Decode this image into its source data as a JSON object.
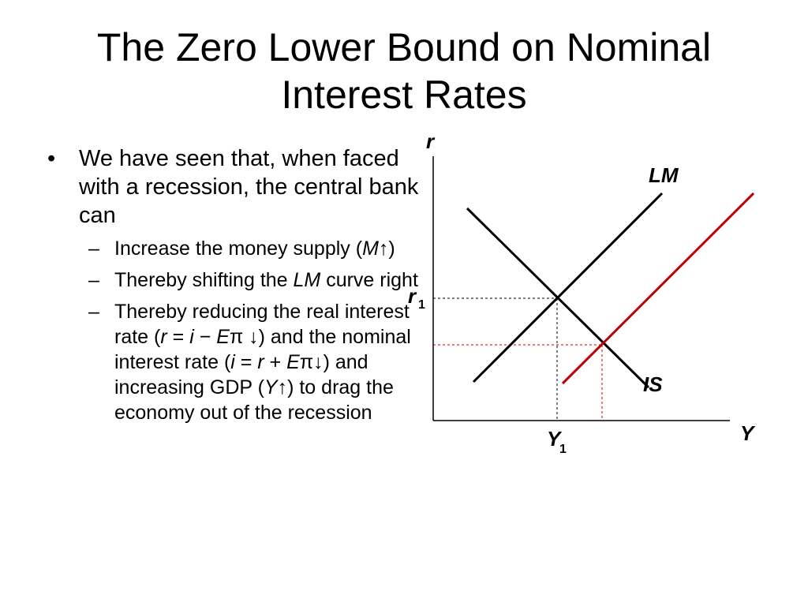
{
  "slide": {
    "title": "The Zero Lower Bound on Nominal Interest Rates",
    "bullets": [
      {
        "marker": "•",
        "text": "We have seen that, when faced with a recession, the central bank can",
        "sub_marker": "–",
        "sub_items": [
          [
            "Increase the money supply (",
            {
              "i": "M"
            },
            "↑)"
          ],
          [
            "Thereby shifting the ",
            {
              "i": "LM"
            },
            " curve right"
          ],
          [
            "Thereby reducing the real interest rate (",
            {
              "i": "r"
            },
            " = ",
            {
              "i": "i"
            },
            " − ",
            {
              "i": "E"
            },
            "π ↓) and the nominal interest rate (",
            {
              "i": "i"
            },
            " = ",
            {
              "i": "r"
            },
            " + ",
            {
              "i": "E"
            },
            "π↓) and increasing GDP (",
            {
              "i": "Y"
            },
            "↑) to drag the economy out of the recession"
          ]
        ]
      }
    ]
  },
  "diagram": {
    "y_axis_label": "r",
    "x_axis_label": "Y",
    "lm_label": "LM",
    "is_label": "IS",
    "r1_label": "r",
    "r1_subscript": "1",
    "y1_label": "Y",
    "y1_subscript": "1",
    "colors": {
      "original_curves": "#000000",
      "shifted_lm": "#c00000",
      "guide_black": "#000000",
      "guide_red": "#c00000"
    }
  }
}
